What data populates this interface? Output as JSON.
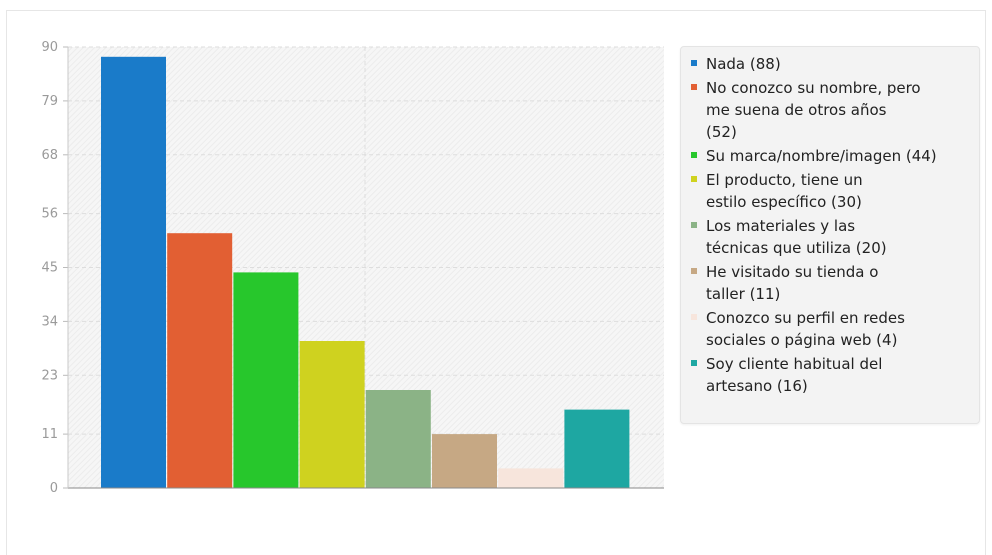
{
  "chart_data": {
    "type": "bar",
    "categories": [
      "Nada",
      "No conozco su nombre, pero me suena de otros años",
      "Su marca/nombre/imagen",
      "El producto, tiene un estilo específico",
      "Los materiales y las técnicas que utiliza",
      "He visitado su tienda o taller",
      "Conozco su perfil en redes sociales o página web",
      "Soy cliente habitual del artesano"
    ],
    "values": [
      88,
      52,
      44,
      30,
      20,
      11,
      4,
      16
    ],
    "colors": [
      "#1a7bc9",
      "#e25f33",
      "#27c72c",
      "#cfd21f",
      "#8bb386",
      "#c6a884",
      "#f7e5dc",
      "#1ea7a2"
    ],
    "y_ticks": [
      0,
      11,
      23,
      34,
      45,
      56,
      68,
      79,
      90
    ],
    "ylim": [
      0,
      90
    ],
    "grid": true,
    "legend_position": "right",
    "legend_labels": [
      "Nada (88)",
      "No conozco su nombre, pero me suena de otros años (52)",
      "Su marca/nombre/imagen (44)",
      "El producto, tiene un estilo específico (30)",
      "Los materiales y las técnicas que utiliza (20)",
      "He visitado su tienda o taller (11)",
      "Conozco su perfil en redes sociales o página web (4)",
      "Soy cliente habitual del artesano (16)"
    ]
  }
}
